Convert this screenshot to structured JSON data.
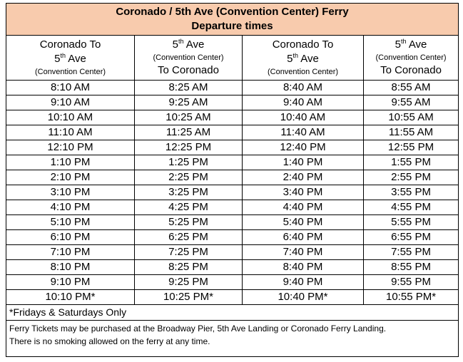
{
  "title": "Coronado / 5th Ave (Convention Center) Ferry",
  "subtitle": "Departure times",
  "columns": [
    {
      "line1": "Coronado To",
      "line2_base": "5",
      "line2_sup": "th",
      "line2_rest": " Ave",
      "line3": "(Convention Center)"
    },
    {
      "line1_base": "5",
      "line1_sup": "th",
      "line1_rest": " Ave",
      "line2": "(Convention Center)",
      "line3": "To Coronado"
    },
    {
      "line1": "Coronado To",
      "line2_base": "5",
      "line2_sup": "th",
      "line2_rest": " Ave",
      "line3": "(Convention Center)"
    },
    {
      "line1_base": "5",
      "line1_sup": "th",
      "line1_rest": " Ave",
      "line2": "(Convention Center)",
      "line3": "To Coronado"
    }
  ],
  "rows": [
    [
      "8:10 AM",
      "8:25 AM",
      "8:40 AM",
      "8:55 AM"
    ],
    [
      "9:10 AM",
      "9:25 AM",
      "9:40 AM",
      "9:55 AM"
    ],
    [
      "10:10 AM",
      "10:25 AM",
      "10:40 AM",
      "10:55 AM"
    ],
    [
      "11:10 AM",
      "11:25 AM",
      "11:40 AM",
      "11:55 AM"
    ],
    [
      "12:10 PM",
      "12:25 PM",
      "12:40 PM",
      "12:55 PM"
    ],
    [
      "1:10 PM",
      "1:25 PM",
      "1:40 PM",
      "1:55 PM"
    ],
    [
      "2:10 PM",
      "2:25 PM",
      "2:40 PM",
      "2:55 PM"
    ],
    [
      "3:10 PM",
      "3:25 PM",
      "3:40 PM",
      "3:55 PM"
    ],
    [
      "4:10 PM",
      "4:25 PM",
      "4:40 PM",
      "4:55 PM"
    ],
    [
      "5:10 PM",
      "5:25 PM",
      "5:40 PM",
      "5:55 PM"
    ],
    [
      "6:10 PM",
      "6:25 PM",
      "6:40 PM",
      "6:55 PM"
    ],
    [
      "7:10 PM",
      "7:25 PM",
      "7:40 PM",
      "7:55 PM"
    ],
    [
      "8:10 PM",
      "8:25 PM",
      "8:40 PM",
      "8:55 PM"
    ],
    [
      "9:10 PM",
      "9:25 PM",
      "9:40 PM",
      "9:55 PM"
    ],
    [
      "10:10 PM*",
      "10:25 PM*",
      "10:40 PM*",
      "10:55 PM*"
    ]
  ],
  "footnote": "*Fridays & Saturdays Only",
  "info_lines": [
    "Ferry Tickets may be purchased at the Broadway Pier, 5th Ave Landing or Coronado Ferry Landing.",
    "There is no smoking allowed on the ferry at any time."
  ],
  "colors": {
    "title_background": "#f8cbad",
    "border": "#000000"
  }
}
